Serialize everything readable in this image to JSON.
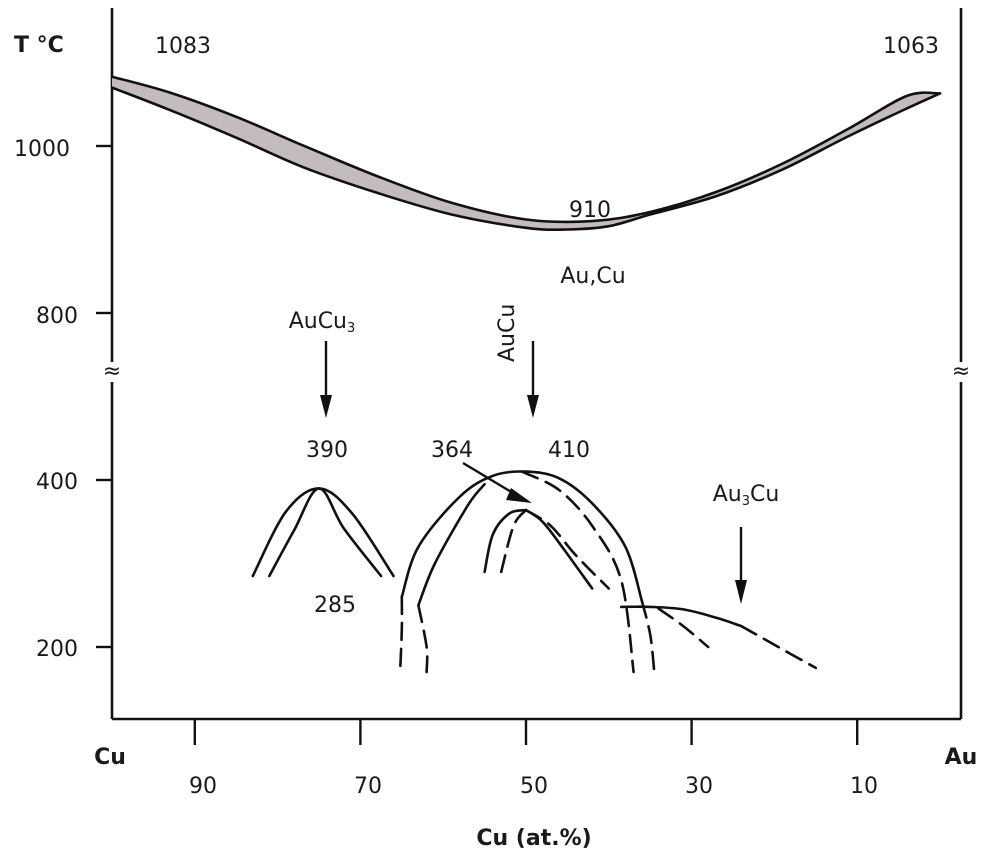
{
  "chart_data": {
    "type": "line",
    "title": "",
    "ylabel": "T °C",
    "xlabel": "Cu (at.%)",
    "x_end_labels": {
      "left": "Cu",
      "right": "Au"
    },
    "x_tick_labels": [
      "90",
      "70",
      "50",
      "30",
      "10"
    ],
    "y_tick_labels": [
      "1000",
      "800",
      "400",
      "200"
    ],
    "axis_break_symbol": "≈",
    "point_labels": {
      "cu_melt": "1083",
      "au_melt": "1063",
      "minimum": "910",
      "phase_au_cu": "Au,Cu",
      "aucu3_peak": "390",
      "aucu3_eutectoid": "285",
      "aucu_low": "364",
      "aucu_high": "410"
    },
    "phases": [
      {
        "name": "AuCu₃",
        "sub_parts": [
          "AuCu",
          "3",
          ""
        ],
        "x": 75
      },
      {
        "name": "AuCu",
        "x": 50
      },
      {
        "name": "Au₃Cu",
        "sub_parts": [
          "Au",
          "3",
          "Cu"
        ],
        "x": 25
      }
    ],
    "liquidus": {
      "x": [
        100,
        93,
        85,
        77,
        68,
        59,
        50,
        42,
        35,
        27,
        19,
        11,
        4,
        0
      ],
      "y": [
        1083,
        1064,
        1035,
        1001,
        964,
        932,
        912,
        910,
        921,
        945,
        979,
        1021,
        1060,
        1063
      ]
    },
    "solidus": {
      "x": [
        100,
        93,
        85,
        77,
        68,
        59,
        50,
        45,
        40,
        35,
        27,
        19,
        11,
        4,
        0
      ],
      "y": [
        1070,
        1043,
        1010,
        975,
        944,
        918,
        902,
        900,
        904,
        918,
        940,
        972,
        1012,
        1045,
        1063
      ]
    },
    "ordering_curves": [
      {
        "phase": "AuCu3-outer",
        "style": "solid",
        "x": [
          83,
          79,
          75,
          71,
          66
        ],
        "y": [
          285,
          362,
          390,
          360,
          285
        ]
      },
      {
        "phase": "AuCu3-inner",
        "style": "solid",
        "x": [
          81,
          78,
          75,
          72,
          67.5
        ],
        "y": [
          285,
          340,
          390,
          342,
          285
        ]
      },
      {
        "phase": "AuCu-outer-left",
        "style": "solid",
        "x": [
          65,
          63,
          58,
          54,
          50,
          46,
          42,
          38,
          36
        ],
        "y": [
          260,
          320,
          380,
          405,
          410,
          402,
          372,
          320,
          255
        ]
      },
      {
        "phase": "AuCu-outer-left-ext",
        "style": "dashed",
        "x": [
          65,
          65,
          65.2
        ],
        "y": [
          260,
          220,
          170
        ]
      },
      {
        "phase": "AuCu-outer-right-ext",
        "style": "dashed",
        "x": [
          36,
          35,
          34.5
        ],
        "y": [
          255,
          215,
          170
        ]
      },
      {
        "phase": "AuCu-inner-left",
        "style": "solid",
        "x": [
          63,
          61,
          57,
          55
        ],
        "y": [
          250,
          300,
          370,
          395
        ]
      },
      {
        "phase": "AuCu-inner-left-ext",
        "style": "dashed",
        "x": [
          63,
          62,
          62
        ],
        "y": [
          250,
          200,
          170
        ]
      },
      {
        "phase": "AuCu-inner-right",
        "style": "dashed",
        "x": [
          50.5,
          46,
          42,
          38.5,
          37
        ],
        "y": [
          410,
          388,
          345,
          280,
          170
        ]
      },
      {
        "phase": "AuCu-low-outer-left",
        "style": "solid",
        "x": [
          55,
          54,
          52,
          50
        ],
        "y": [
          290,
          335,
          360,
          364
        ]
      },
      {
        "phase": "AuCu-low-outer-right",
        "style": "solid",
        "x": [
          50,
          48,
          45.5,
          42
        ],
        "y": [
          364,
          350,
          318,
          270
        ]
      },
      {
        "phase": "AuCu-low-inner-left",
        "style": "dashed",
        "x": [
          53,
          51.5,
          50
        ],
        "y": [
          290,
          345,
          364
        ]
      },
      {
        "phase": "AuCu-low-inner-right",
        "style": "dashed",
        "x": [
          50,
          47,
          44,
          40
        ],
        "y": [
          364,
          345,
          310,
          270
        ]
      },
      {
        "phase": "Au3Cu-solid",
        "style": "solid",
        "x": [
          38.5,
          35,
          31,
          27,
          24
        ],
        "y": [
          248,
          248,
          245,
          235,
          225
        ]
      },
      {
        "phase": "Au3Cu-dashed-upper",
        "style": "dashed",
        "x": [
          24,
          19,
          15
        ],
        "y": [
          225,
          197,
          175
        ]
      },
      {
        "phase": "Au3Cu-dashed-lower",
        "style": "dashed",
        "x": [
          34,
          31,
          28
        ],
        "y": [
          246,
          225,
          200
        ]
      }
    ]
  }
}
